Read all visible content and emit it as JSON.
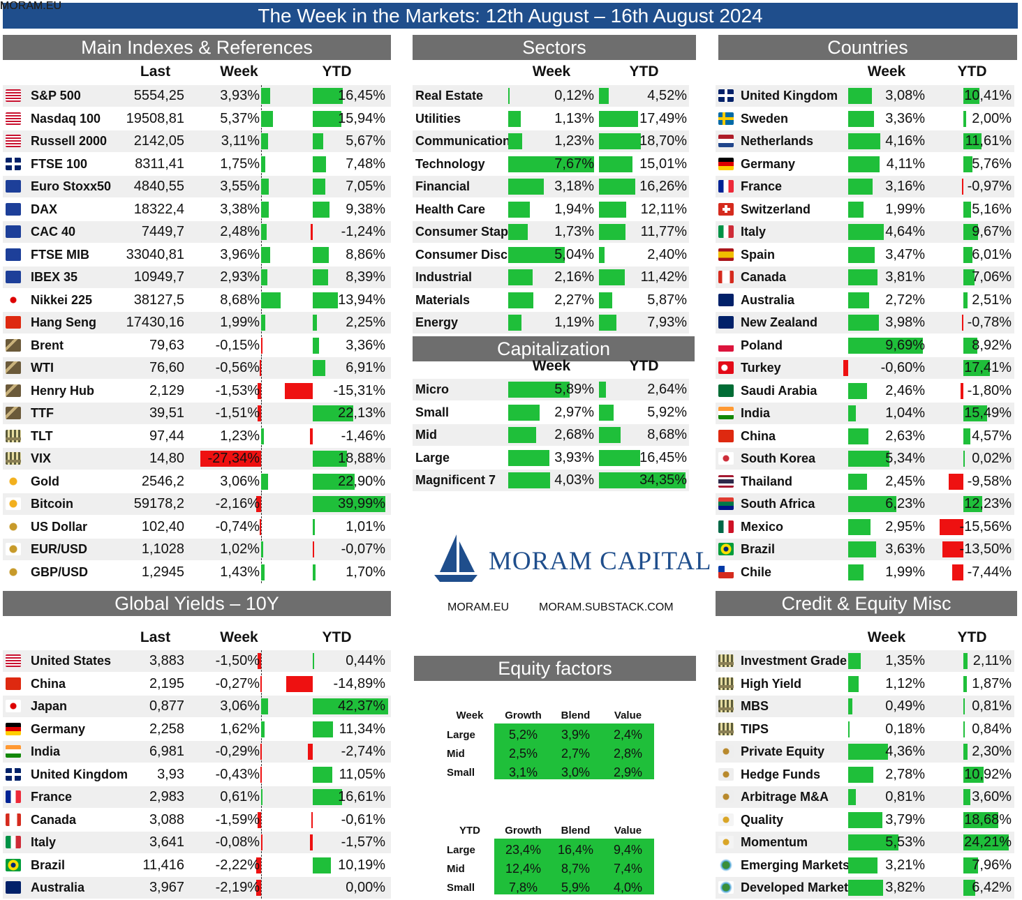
{
  "title": "The Week in the Markets: 12th August – 16th August 2024",
  "watermark": "MORAM.EU",
  "brand": {
    "name": "MORAM CAPITAL",
    "links": [
      "MORAM.EU",
      "MORAM.SUBSTACK.COM"
    ]
  },
  "colors": {
    "positive": "#1fbf3a",
    "negative": "#ee1111",
    "header": "#6e6e6e",
    "title": "#1f4e8c"
  },
  "main_indexes": {
    "title": "Main Indexes & References",
    "columns": [
      "Last",
      "Week",
      "YTD"
    ],
    "rows": [
      {
        "name": "S&P 500",
        "icon": "us-flag-icon",
        "last": "5554,25",
        "week": "3,93%",
        "ytd": "16,45%"
      },
      {
        "name": "Nasdaq 100",
        "icon": "us-flag-icon",
        "last": "19508,81",
        "week": "5,37%",
        "ytd": "15,94%"
      },
      {
        "name": "Russell 2000",
        "icon": "us-flag-icon",
        "last": "2142,05",
        "week": "3,11%",
        "ytd": "5,67%"
      },
      {
        "name": "FTSE 100",
        "icon": "uk-flag-icon",
        "last": "8311,41",
        "week": "1,75%",
        "ytd": "7,48%"
      },
      {
        "name": "Euro Stoxx50",
        "icon": "eu-flag-icon",
        "last": "4840,55",
        "week": "3,55%",
        "ytd": "7,05%"
      },
      {
        "name": "DAX",
        "icon": "eu-flag-icon",
        "last": "18322,4",
        "week": "3,38%",
        "ytd": "9,38%"
      },
      {
        "name": "CAC 40",
        "icon": "eu-flag-icon",
        "last": "7449,7",
        "week": "2,48%",
        "ytd": "-1,24%"
      },
      {
        "name": "FTSE MIB",
        "icon": "eu-flag-icon",
        "last": "33040,81",
        "week": "3,96%",
        "ytd": "8,86%"
      },
      {
        "name": "IBEX 35",
        "icon": "eu-flag-icon",
        "last": "10949,7",
        "week": "2,93%",
        "ytd": "8,39%"
      },
      {
        "name": "Nikkei 225",
        "icon": "japan-flag-icon",
        "last": "38127,5",
        "week": "8,68%",
        "ytd": "13,94%"
      },
      {
        "name": "Hang Seng",
        "icon": "china-flag-icon",
        "last": "17430,16",
        "week": "1,99%",
        "ytd": "2,25%"
      },
      {
        "name": "Brent",
        "icon": "oil-rig-icon",
        "last": "79,63",
        "week": "-0,15%",
        "ytd": "3,36%"
      },
      {
        "name": "WTI",
        "icon": "oil-rig-icon",
        "last": "76,60",
        "week": "-0,56%",
        "ytd": "6,91%"
      },
      {
        "name": "Henry Hub",
        "icon": "oil-rig-icon",
        "last": "2,129",
        "week": "-1,53%",
        "ytd": "-15,31%"
      },
      {
        "name": "TTF",
        "icon": "oil-rig-icon",
        "last": "39,51",
        "week": "-1,51%",
        "ytd": "22,13%"
      },
      {
        "name": "TLT",
        "icon": "bank-icon",
        "last": "97,44",
        "week": "1,23%",
        "ytd": "-1,46%"
      },
      {
        "name": "VIX",
        "icon": "bank-icon",
        "last": "14,80",
        "week": "-27,34%",
        "ytd": "18,88%"
      },
      {
        "name": "Gold",
        "icon": "gold-coins-icon",
        "last": "2546,2",
        "week": "3,06%",
        "ytd": "22,90%"
      },
      {
        "name": "Bitcoin",
        "icon": "gold-coins-icon",
        "last": "59178,2",
        "week": "-2,16%",
        "ytd": "39,99%"
      },
      {
        "name": "US Dollar",
        "icon": "currency-coins-icon",
        "last": "102,40",
        "week": "-0,74%",
        "ytd": "1,01%"
      },
      {
        "name": "EUR/USD",
        "icon": "currency-coins-icon",
        "last": "1,1028",
        "week": "1,02%",
        "ytd": "-0,07%"
      },
      {
        "name": "GBP/USD",
        "icon": "currency-coins-icon",
        "last": "1,2945",
        "week": "1,43%",
        "ytd": "1,70%"
      }
    ]
  },
  "sectors": {
    "title": "Sectors",
    "columns": [
      "Week",
      "YTD"
    ],
    "rows": [
      {
        "name": "Real Estate",
        "week": "0,12%",
        "ytd": "4,52%"
      },
      {
        "name": "Utilities",
        "week": "1,13%",
        "ytd": "17,49%"
      },
      {
        "name": "Communication",
        "week": "1,23%",
        "ytd": "18,70%"
      },
      {
        "name": "Technology",
        "week": "7,67%",
        "ytd": "15,01%"
      },
      {
        "name": "Financial",
        "week": "3,18%",
        "ytd": "16,26%"
      },
      {
        "name": "Health Care",
        "week": "1,94%",
        "ytd": "12,11%"
      },
      {
        "name": "Consumer Staple",
        "week": "1,73%",
        "ytd": "11,77%"
      },
      {
        "name": "Consumer Discre",
        "week": "5,04%",
        "ytd": "2,40%"
      },
      {
        "name": "Industrial",
        "week": "2,16%",
        "ytd": "11,42%"
      },
      {
        "name": "Materials",
        "week": "2,27%",
        "ytd": "5,87%"
      },
      {
        "name": "Energy",
        "week": "1,19%",
        "ytd": "7,93%"
      }
    ]
  },
  "capitalization": {
    "title": "Capitalization",
    "columns": [
      "Week",
      "YTD"
    ],
    "rows": [
      {
        "name": "Micro",
        "week": "5,89%",
        "ytd": "2,64%"
      },
      {
        "name": "Small",
        "week": "2,97%",
        "ytd": "5,92%"
      },
      {
        "name": "Mid",
        "week": "2,68%",
        "ytd": "8,68%"
      },
      {
        "name": "Large",
        "week": "3,93%",
        "ytd": "16,45%"
      },
      {
        "name": "Magnificent 7",
        "week": "4,03%",
        "ytd": "34,35%"
      }
    ]
  },
  "countries": {
    "title": "Countries",
    "columns": [
      "Week",
      "YTD"
    ],
    "rows": [
      {
        "name": "United Kingdom",
        "icon": "uk-flag-icon",
        "week": "3,08%",
        "ytd": "10,41%"
      },
      {
        "name": "Sweden",
        "icon": "sweden-flag-icon",
        "week": "3,36%",
        "ytd": "2,00%"
      },
      {
        "name": "Netherlands",
        "icon": "netherlands-flag-icon",
        "week": "4,16%",
        "ytd": "11,61%"
      },
      {
        "name": "Germany",
        "icon": "germany-flag-icon",
        "week": "4,11%",
        "ytd": "5,76%"
      },
      {
        "name": "France",
        "icon": "france-flag-icon",
        "week": "3,16%",
        "ytd": "-0,97%"
      },
      {
        "name": "Switzerland",
        "icon": "switzerland-flag-icon",
        "week": "1,99%",
        "ytd": "5,16%"
      },
      {
        "name": "Italy",
        "icon": "italy-flag-icon",
        "week": "4,64%",
        "ytd": "9,67%"
      },
      {
        "name": "Spain",
        "icon": "spain-flag-icon",
        "week": "3,47%",
        "ytd": "6,01%"
      },
      {
        "name": "Canada",
        "icon": "canada-flag-icon",
        "week": "3,81%",
        "ytd": "7,06%"
      },
      {
        "name": "Australia",
        "icon": "australia-flag-icon",
        "week": "2,72%",
        "ytd": "2,51%"
      },
      {
        "name": "New Zealand",
        "icon": "new-zealand-flag-icon",
        "week": "3,98%",
        "ytd": "-0,78%"
      },
      {
        "name": "Poland",
        "icon": "poland-flag-icon",
        "week": "9,69%",
        "ytd": "8,92%"
      },
      {
        "name": "Turkey",
        "icon": "turkey-flag-icon",
        "week": "-0,60%",
        "ytd": "17,41%"
      },
      {
        "name": "Saudi Arabia",
        "icon": "saudi-flag-icon",
        "week": "2,46%",
        "ytd": "-1,80%"
      },
      {
        "name": "India",
        "icon": "india-flag-icon",
        "week": "1,04%",
        "ytd": "15,49%"
      },
      {
        "name": "China",
        "icon": "china-flag-icon",
        "week": "2,63%",
        "ytd": "4,57%"
      },
      {
        "name": "South Korea",
        "icon": "south-korea-flag-icon",
        "week": "5,34%",
        "ytd": "0,02%"
      },
      {
        "name": "Thailand",
        "icon": "thailand-flag-icon",
        "week": "2,45%",
        "ytd": "-9,58%"
      },
      {
        "name": "South Africa",
        "icon": "south-africa-flag-icon",
        "week": "6,23%",
        "ytd": "12,23%"
      },
      {
        "name": "Mexico",
        "icon": "mexico-flag-icon",
        "week": "2,95%",
        "ytd": "-15,56%"
      },
      {
        "name": "Brazil",
        "icon": "brazil-flag-icon",
        "week": "3,63%",
        "ytd": "-13,50%"
      },
      {
        "name": "Chile",
        "icon": "chile-flag-icon",
        "week": "1,99%",
        "ytd": "-7,44%"
      }
    ]
  },
  "yields": {
    "title": "Global Yields – 10Y",
    "columns": [
      "Last",
      "Week",
      "YTD"
    ],
    "rows": [
      {
        "name": "United States",
        "icon": "us-flag-icon",
        "last": "3,883",
        "week": "-1,50%",
        "ytd": "0,44%"
      },
      {
        "name": "China",
        "icon": "china-flag-icon",
        "last": "2,195",
        "week": "-0,27%",
        "ytd": "-14,89%"
      },
      {
        "name": "Japan",
        "icon": "japan-flag-icon",
        "last": "0,877",
        "week": "3,06%",
        "ytd": "42,37%"
      },
      {
        "name": "Germany",
        "icon": "germany-flag-icon",
        "last": "2,258",
        "week": "1,62%",
        "ytd": "11,34%"
      },
      {
        "name": "India",
        "icon": "india-flag-icon",
        "last": "6,981",
        "week": "-0,29%",
        "ytd": "-2,74%"
      },
      {
        "name": "United Kingdom",
        "icon": "uk-flag-icon",
        "last": "3,93",
        "week": "-0,43%",
        "ytd": "11,05%"
      },
      {
        "name": "France",
        "icon": "france-flag-icon",
        "last": "2,983",
        "week": "0,61%",
        "ytd": "16,61%"
      },
      {
        "name": "Canada",
        "icon": "canada-flag-icon",
        "last": "3,088",
        "week": "-1,59%",
        "ytd": "-0,61%"
      },
      {
        "name": "Italy",
        "icon": "italy-flag-icon",
        "last": "3,641",
        "week": "-0,08%",
        "ytd": "-1,57%"
      },
      {
        "name": "Brazil",
        "icon": "brazil-flag-icon",
        "last": "11,416",
        "week": "-2,22%",
        "ytd": "10,19%"
      },
      {
        "name": "Australia",
        "icon": "australia-flag-icon",
        "last": "3,967",
        "week": "-2,19%",
        "ytd": "0,00%"
      }
    ]
  },
  "credit": {
    "title": "Credit & Equity Misc",
    "columns": [
      "Week",
      "YTD"
    ],
    "rows": [
      {
        "name": "Investment Grade",
        "icon": "bank-icon",
        "week": "1,35%",
        "ytd": "2,11%"
      },
      {
        "name": "High Yield",
        "icon": "bank-icon",
        "week": "1,12%",
        "ytd": "1,87%"
      },
      {
        "name": "MBS",
        "icon": "bank-icon",
        "week": "0,49%",
        "ytd": "0,81%"
      },
      {
        "name": "TIPS",
        "icon": "bank-icon",
        "week": "0,18%",
        "ytd": "0,84%"
      },
      {
        "name": "Private Equity",
        "icon": "balance-icon",
        "week": "4,36%",
        "ytd": "2,30%"
      },
      {
        "name": "Hedge Funds",
        "icon": "balance-icon",
        "week": "2,78%",
        "ytd": "10,92%"
      },
      {
        "name": "Arbitrage M&A",
        "icon": "balance-icon",
        "week": "0,81%",
        "ytd": "3,60%"
      },
      {
        "name": "Quality",
        "icon": "coin-network-icon",
        "week": "3,79%",
        "ytd": "18,68%"
      },
      {
        "name": "Momentum",
        "icon": "coin-network-icon",
        "week": "5,53%",
        "ytd": "24,21%"
      },
      {
        "name": "Emerging Markets",
        "icon": "globe-icon",
        "week": "3,21%",
        "ytd": "7,96%"
      },
      {
        "name": "Developed Market",
        "icon": "globe-icon",
        "week": "3,82%",
        "ytd": "6,42%"
      }
    ]
  },
  "equity_factors": {
    "title": "Equity factors",
    "columns": [
      "Growth",
      "Blend",
      "Value"
    ],
    "rows_labels": [
      "Large",
      "Mid",
      "Small"
    ],
    "week": {
      "label": "Week",
      "values": [
        [
          "5,2%",
          "3,9%",
          "2,4%"
        ],
        [
          "2,5%",
          "2,7%",
          "2,8%"
        ],
        [
          "3,1%",
          "3,0%",
          "2,9%"
        ]
      ]
    },
    "ytd": {
      "label": "YTD",
      "values": [
        [
          "23,4%",
          "16,4%",
          "9,4%"
        ],
        [
          "12,4%",
          "8,7%",
          "7,4%"
        ],
        [
          "7,8%",
          "5,9%",
          "4,0%"
        ]
      ]
    }
  },
  "chart_data": {
    "type": "table",
    "title": "The Week in the Markets: 12th August – 16th August 2024",
    "note": "bar lengths encode the Week and YTD percentages in each table"
  }
}
